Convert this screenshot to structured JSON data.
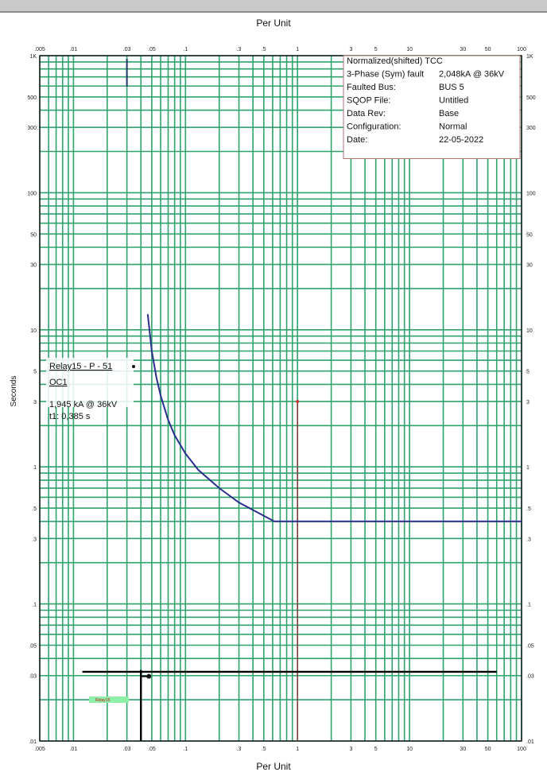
{
  "chart_data": {
    "type": "line",
    "title": "",
    "xlabel": "Per Unit",
    "ylabel": "Seconds",
    "x_scale": "log",
    "y_scale": "log",
    "xlim": [
      0.005,
      100
    ],
    "ylim": [
      0.01,
      1000
    ],
    "grid": true,
    "x_tick_labels": [
      {
        "value": 0.005,
        "label": ".005"
      },
      {
        "value": 0.01,
        "label": ".01"
      },
      {
        "value": 0.03,
        "label": ".03"
      },
      {
        "value": 0.05,
        "label": ".05"
      },
      {
        "value": 0.1,
        "label": ".1"
      },
      {
        "value": 0.3,
        "label": ".3"
      },
      {
        "value": 0.5,
        "label": ".5"
      },
      {
        "value": 1,
        "label": "1"
      },
      {
        "value": 3,
        "label": "3"
      },
      {
        "value": 5,
        "label": "5"
      },
      {
        "value": 10,
        "label": "10"
      },
      {
        "value": 30,
        "label": "30"
      },
      {
        "value": 50,
        "label": "50"
      },
      {
        "value": 100,
        "label": "100"
      }
    ],
    "y_tick_labels": [
      {
        "value": 1000,
        "label": "1K"
      },
      {
        "value": 500,
        "label": "500"
      },
      {
        "value": 300,
        "label": "300"
      },
      {
        "value": 100,
        "label": "100"
      },
      {
        "value": 50,
        "label": "50"
      },
      {
        "value": 30,
        "label": "30"
      },
      {
        "value": 10,
        "label": "10"
      },
      {
        "value": 5,
        "label": "5"
      },
      {
        "value": 3,
        "label": "3"
      },
      {
        "value": 1,
        "label": "1"
      },
      {
        "value": 0.5,
        "label": ".5"
      },
      {
        "value": 0.3,
        "label": ".3"
      },
      {
        "value": 0.1,
        "label": ".1"
      },
      {
        "value": 0.05,
        "label": ".05"
      },
      {
        "value": 0.03,
        "label": ".03"
      },
      {
        "value": 0.01,
        "label": ".01"
      }
    ],
    "series": [
      {
        "name": "Relay15 - P - 51",
        "color": "#2b2f8e",
        "points": [
          [
            0.046,
            13
          ],
          [
            0.05,
            7
          ],
          [
            0.055,
            4.5
          ],
          [
            0.06,
            3.3
          ],
          [
            0.07,
            2.2
          ],
          [
            0.08,
            1.7
          ],
          [
            0.1,
            1.25
          ],
          [
            0.13,
            0.95
          ],
          [
            0.2,
            0.7
          ],
          [
            0.3,
            0.55
          ],
          [
            0.45,
            0.46
          ],
          [
            0.62,
            0.4
          ],
          [
            100,
            0.4
          ]
        ]
      }
    ],
    "markers": [
      {
        "type": "fault-line",
        "x": 1,
        "y": [
          0.01,
          3
        ],
        "color": "#8b2a2a"
      },
      {
        "type": "horizontal-line",
        "y": 0.032,
        "x": [
          0.012,
          60
        ],
        "color": "#000000"
      },
      {
        "type": "vertical-line",
        "x": 0.04,
        "y": [
          0.01,
          0.033
        ],
        "color": "#000000"
      },
      {
        "type": "tick",
        "x": 0.03,
        "y": [
          700,
          1000
        ],
        "color": "#1f3a6b"
      }
    ],
    "info_box": [
      {
        "key": "Normalized(shifted) TCC",
        "value": ""
      },
      {
        "key": "3-Phase (Sym) fault",
        "value": "2,048kA @ 36kV"
      },
      {
        "key": "Faulted Bus:",
        "value": "BUS 5"
      },
      {
        "key": "SQOP File:",
        "value": "Untitled"
      },
      {
        "key": "Data Rev:",
        "value": "Base"
      },
      {
        "key": "Configuration:",
        "value": "Normal"
      },
      {
        "key": "Date:",
        "value": "22-05-2022"
      }
    ],
    "relay_annotation": {
      "name": "Relay15 - P - 51",
      "setting": "OC1",
      "current": "1,945 kA @ 36kV",
      "time": "t1: 0,385 s"
    },
    "small_legend_label": "Relay15"
  },
  "colors": {
    "grid": "#2fa36b",
    "curve": "#2b2f8e",
    "fault": "#8b2a2a",
    "legend_green": "#8ef0a8",
    "frame": "#111111"
  }
}
